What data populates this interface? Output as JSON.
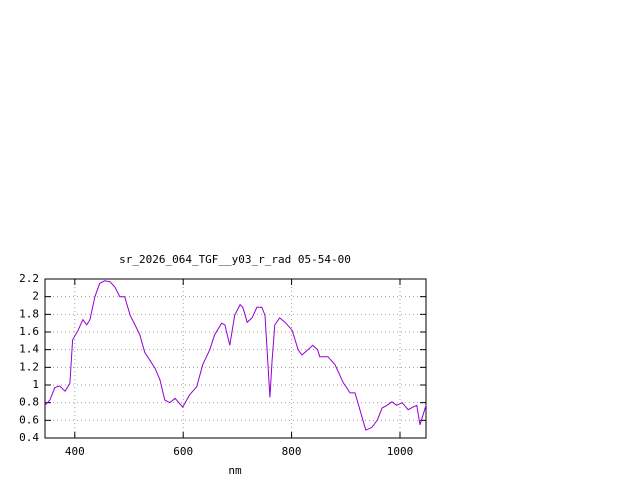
{
  "chart_data": {
    "type": "line",
    "title": "sr_2026_064_TGF__y03_r_rad 05-54-00",
    "x_label": "nm",
    "x": [
      345,
      354,
      363,
      372,
      382,
      391,
      396,
      406,
      415,
      422,
      428,
      437,
      446,
      455,
      465,
      474,
      483,
      492,
      502,
      511,
      520,
      529,
      548,
      557,
      566,
      575,
      585,
      599,
      612,
      625,
      636,
      649,
      658,
      671,
      677,
      686,
      695,
      705,
      710,
      718,
      727,
      736,
      745,
      751,
      756,
      760,
      764,
      769,
      778,
      788,
      801,
      812,
      819,
      830,
      839,
      848,
      852,
      867,
      880,
      895,
      908,
      917,
      926,
      937,
      948,
      958,
      967,
      976,
      985,
      994,
      1004,
      1015,
      1024,
      1031,
      1037,
      1048
    ],
    "series": [
      {
        "color": "#9400d3",
        "values": [
          0.77,
          0.83,
          0.97,
          0.99,
          0.93,
          1.02,
          1.51,
          1.62,
          1.74,
          1.68,
          1.74,
          2.0,
          2.15,
          2.18,
          2.17,
          2.11,
          2.0,
          2.0,
          1.79,
          1.68,
          1.57,
          1.37,
          1.19,
          1.06,
          0.83,
          0.8,
          0.85,
          0.75,
          0.89,
          0.98,
          1.23,
          1.4,
          1.57,
          1.7,
          1.68,
          1.45,
          1.79,
          1.91,
          1.88,
          1.71,
          1.76,
          1.88,
          1.88,
          1.79,
          1.28,
          0.86,
          1.28,
          1.68,
          1.76,
          1.71,
          1.62,
          1.4,
          1.34,
          1.4,
          1.45,
          1.4,
          1.32,
          1.32,
          1.23,
          1.03,
          0.91,
          0.91,
          0.72,
          0.49,
          0.52,
          0.6,
          0.74,
          0.77,
          0.81,
          0.77,
          0.8,
          0.72,
          0.75,
          0.77,
          0.55,
          0.77
        ]
      }
    ],
    "xlim": [
      345,
      1048
    ],
    "xticks": [
      400,
      600,
      800,
      1000
    ],
    "ylim": [
      0.4,
      2.2
    ],
    "yticks": [
      0.4,
      0.6,
      0.8,
      1,
      1.2,
      1.4,
      1.6,
      1.8,
      2,
      2.2
    ],
    "grid": true
  }
}
